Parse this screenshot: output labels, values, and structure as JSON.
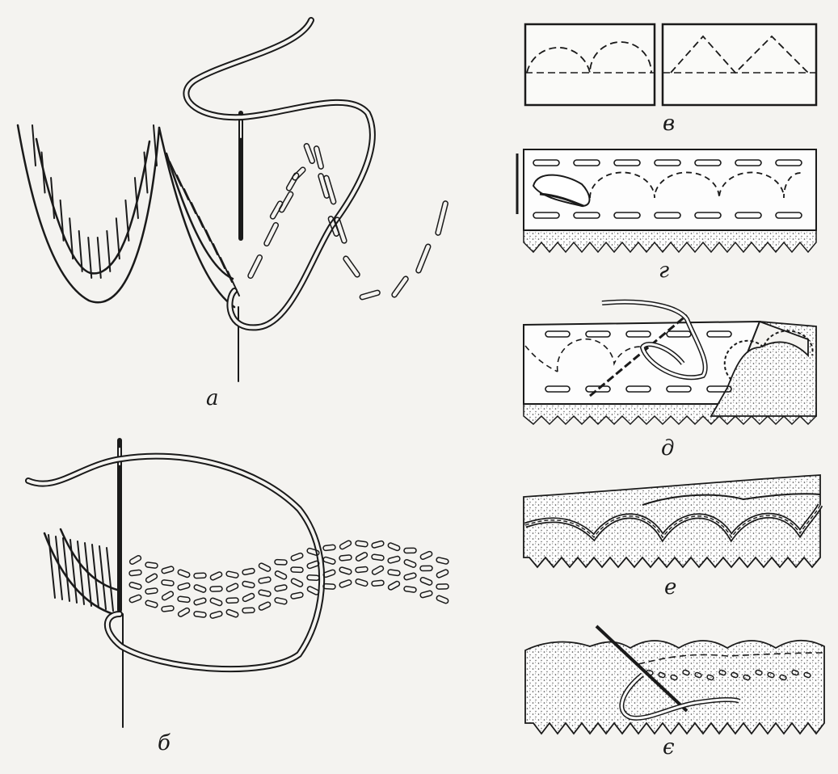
{
  "figure": {
    "panels": [
      {
        "id": "a",
        "label": "а",
        "subject": "overcast-scallop-with-running-stitch-contour"
      },
      {
        "id": "b",
        "label": "б",
        "subject": "padding-stitches-and-satin-overcast"
      },
      {
        "id": "v",
        "label": "в",
        "subject": "scallop-templates-arc-and-triangle"
      },
      {
        "id": "g",
        "label": "г",
        "subject": "marking-on-fabric-with-needle"
      },
      {
        "id": "d",
        "label": "д",
        "subject": "cutting-fabric-along-scallops"
      },
      {
        "id": "e",
        "label": "е",
        "subject": "finished-scalloped-edge"
      },
      {
        "id": "ye",
        "label": "є",
        "subject": "stitching-decorative-edge"
      }
    ],
    "colors": {
      "ink": "#1a1a1a",
      "paper": "#f4f3f0",
      "fabric": "#ffffff"
    }
  }
}
